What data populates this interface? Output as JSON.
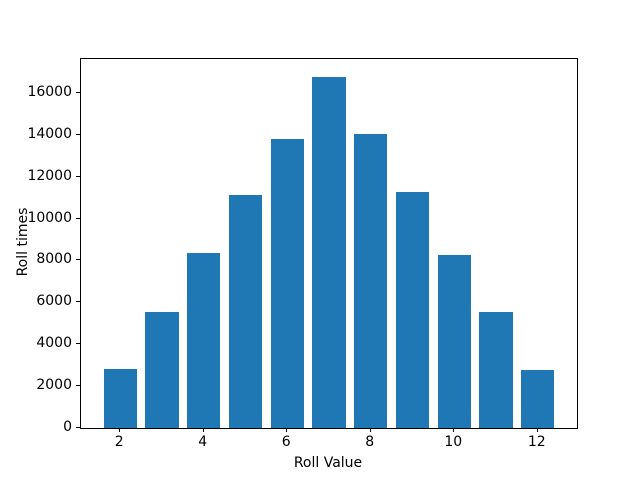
{
  "chart_data": {
    "type": "bar",
    "title": "",
    "xlabel": "Roll Value",
    "ylabel": "Roll times",
    "x": [
      2,
      3,
      4,
      5,
      6,
      7,
      8,
      9,
      10,
      11,
      12
    ],
    "values": [
      2820,
      5530,
      8340,
      11130,
      13780,
      16780,
      14060,
      11280,
      8260,
      5530,
      2770
    ],
    "bar_width_units": 0.8,
    "bar_color": "#1f77b4",
    "xticks": [
      2,
      4,
      6,
      8,
      10,
      12
    ],
    "yticks": [
      0,
      2000,
      4000,
      6000,
      8000,
      10000,
      12000,
      14000,
      16000
    ],
    "xlim": [
      1.06,
      12.94
    ],
    "ylim": [
      0,
      17620
    ],
    "grid": false,
    "legend": null,
    "spines": "full-box",
    "axis_color": "#000000",
    "background_color": "#ffffff"
  }
}
